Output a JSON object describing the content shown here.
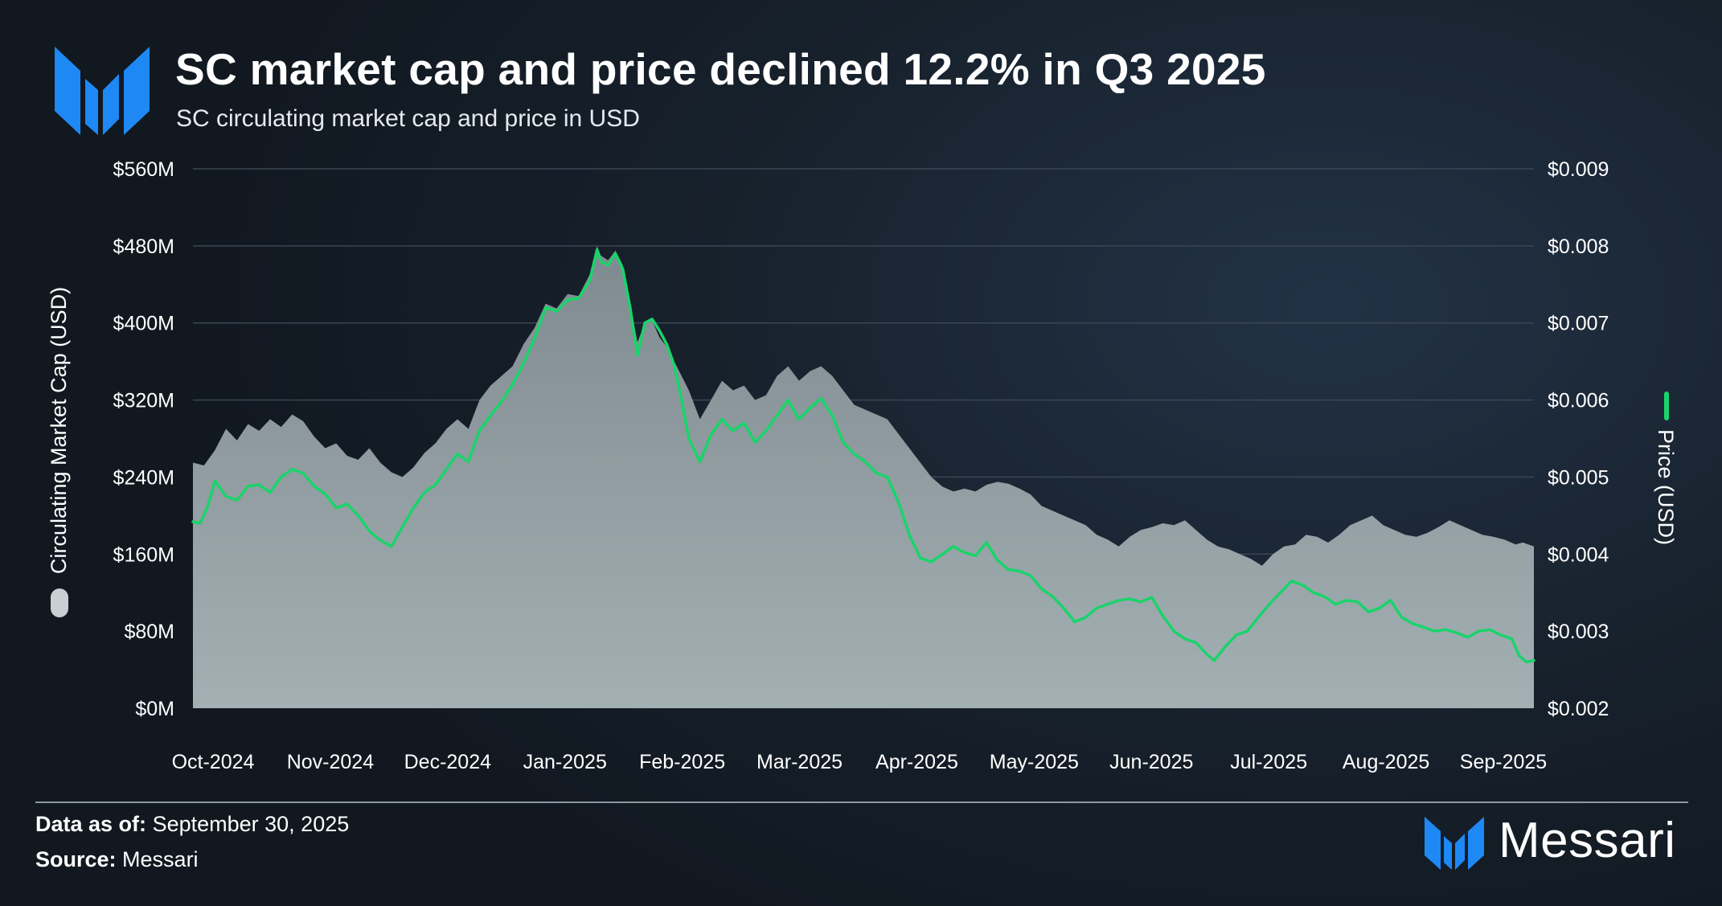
{
  "header": {
    "title": "SC market cap and price declined 12.2% in Q3 2025",
    "subtitle": "SC circulating market cap and price in USD"
  },
  "footer": {
    "data_as_of_label": "Data as of:",
    "data_as_of_value": "September 30, 2025",
    "source_label": "Source:",
    "source_value": "Messari"
  },
  "brand": {
    "name": "Messari",
    "logo_icon": "messari-logo-icon",
    "color": "#1e88f5"
  },
  "colors": {
    "area_fill": "#8b9aa0",
    "price_line": "#19d46a",
    "grid": "#3a4654"
  },
  "chart_data": {
    "type": "area+line",
    "title": "SC market cap and price declined 12.2% in Q3 2025",
    "subtitle": "SC circulating market cap and price in USD",
    "x_tick_labels": [
      "Oct-2024",
      "Nov-2024",
      "Dec-2024",
      "Jan-2025",
      "Feb-2025",
      "Mar-2025",
      "Apr-2025",
      "May-2025",
      "Jun-2025",
      "Jul-2025",
      "Aug-2025",
      "Sep-2025"
    ],
    "y_left": {
      "label": "Circulating Market Cap (USD)",
      "ylim": [
        0,
        560
      ],
      "ticks": [
        0,
        80,
        160,
        240,
        320,
        400,
        480,
        560
      ],
      "tick_labels": [
        "$0M",
        "$80M",
        "$160M",
        "$240M",
        "$320M",
        "$400M",
        "$480M",
        "$560M"
      ]
    },
    "y_right": {
      "label": "Price (USD)",
      "ylim": [
        0.002,
        0.009
      ],
      "ticks": [
        0.002,
        0.003,
        0.004,
        0.005,
        0.006,
        0.007,
        0.008,
        0.009
      ],
      "tick_labels": [
        "$0.002",
        "$0.003",
        "$0.004",
        "$0.005",
        "$0.006",
        "$0.007",
        "$0.008",
        "$0.009"
      ]
    },
    "x_range_days": [
      0,
      365
    ],
    "grid": true,
    "series": [
      {
        "name": "Circulating Market Cap (USD)",
        "axis": "left",
        "kind": "area",
        "unit": "$M",
        "points": [
          [
            0,
            255
          ],
          [
            3,
            252
          ],
          [
            6,
            268
          ],
          [
            9,
            290
          ],
          [
            12,
            278
          ],
          [
            15,
            295
          ],
          [
            18,
            288
          ],
          [
            21,
            300
          ],
          [
            24,
            292
          ],
          [
            27,
            305
          ],
          [
            30,
            298
          ],
          [
            33,
            282
          ],
          [
            36,
            270
          ],
          [
            39,
            275
          ],
          [
            42,
            262
          ],
          [
            45,
            258
          ],
          [
            48,
            270
          ],
          [
            51,
            255
          ],
          [
            54,
            245
          ],
          [
            57,
            240
          ],
          [
            60,
            250
          ],
          [
            63,
            265
          ],
          [
            66,
            275
          ],
          [
            69,
            290
          ],
          [
            72,
            300
          ],
          [
            75,
            290
          ],
          [
            78,
            320
          ],
          [
            81,
            335
          ],
          [
            84,
            345
          ],
          [
            87,
            355
          ],
          [
            90,
            378
          ],
          [
            93,
            395
          ],
          [
            96,
            420
          ],
          [
            99,
            415
          ],
          [
            102,
            430
          ],
          [
            105,
            428
          ],
          [
            108,
            450
          ],
          [
            110,
            480
          ],
          [
            111,
            470
          ],
          [
            113,
            465
          ],
          [
            115,
            475
          ],
          [
            117,
            460
          ],
          [
            119,
            420
          ],
          [
            121,
            380
          ],
          [
            123,
            400
          ],
          [
            125,
            402
          ],
          [
            127,
            385
          ],
          [
            129,
            375
          ],
          [
            131,
            360
          ],
          [
            133,
            345
          ],
          [
            135,
            330
          ],
          [
            138,
            300
          ],
          [
            141,
            320
          ],
          [
            144,
            340
          ],
          [
            147,
            330
          ],
          [
            150,
            335
          ],
          [
            153,
            320
          ],
          [
            156,
            325
          ],
          [
            159,
            345
          ],
          [
            162,
            355
          ],
          [
            165,
            340
          ],
          [
            168,
            350
          ],
          [
            171,
            355
          ],
          [
            174,
            345
          ],
          [
            177,
            330
          ],
          [
            180,
            315
          ],
          [
            183,
            310
          ],
          [
            186,
            305
          ],
          [
            189,
            300
          ],
          [
            192,
            285
          ],
          [
            195,
            270
          ],
          [
            198,
            255
          ],
          [
            201,
            240
          ],
          [
            204,
            230
          ],
          [
            207,
            225
          ],
          [
            210,
            228
          ],
          [
            213,
            225
          ],
          [
            216,
            232
          ],
          [
            219,
            235
          ],
          [
            222,
            233
          ],
          [
            225,
            228
          ],
          [
            228,
            222
          ],
          [
            231,
            210
          ],
          [
            234,
            205
          ],
          [
            237,
            200
          ],
          [
            240,
            195
          ],
          [
            243,
            190
          ],
          [
            246,
            180
          ],
          [
            249,
            175
          ],
          [
            252,
            168
          ],
          [
            255,
            178
          ],
          [
            258,
            185
          ],
          [
            261,
            188
          ],
          [
            264,
            192
          ],
          [
            267,
            190
          ],
          [
            270,
            195
          ],
          [
            273,
            185
          ],
          [
            276,
            175
          ],
          [
            279,
            168
          ],
          [
            282,
            165
          ],
          [
            285,
            160
          ],
          [
            288,
            155
          ],
          [
            291,
            148
          ],
          [
            294,
            160
          ],
          [
            297,
            168
          ],
          [
            300,
            170
          ],
          [
            303,
            180
          ],
          [
            306,
            178
          ],
          [
            309,
            172
          ],
          [
            312,
            180
          ],
          [
            315,
            190
          ],
          [
            318,
            195
          ],
          [
            321,
            200
          ],
          [
            324,
            190
          ],
          [
            327,
            185
          ],
          [
            330,
            180
          ],
          [
            333,
            178
          ],
          [
            336,
            182
          ],
          [
            339,
            188
          ],
          [
            342,
            195
          ],
          [
            345,
            190
          ],
          [
            348,
            185
          ],
          [
            351,
            180
          ],
          [
            354,
            178
          ],
          [
            357,
            175
          ],
          [
            360,
            170
          ],
          [
            362,
            172
          ],
          [
            365,
            168
          ]
        ]
      },
      {
        "name": "Price (USD)",
        "axis": "right",
        "kind": "line",
        "points": [
          [
            0,
            0.00442
          ],
          [
            2,
            0.0044
          ],
          [
            4,
            0.00462
          ],
          [
            6,
            0.00495
          ],
          [
            9,
            0.00475
          ],
          [
            12,
            0.0047
          ],
          [
            15,
            0.00488
          ],
          [
            18,
            0.0049
          ],
          [
            21,
            0.0048
          ],
          [
            24,
            0.005
          ],
          [
            27,
            0.0051
          ],
          [
            30,
            0.00505
          ],
          [
            33,
            0.00488
          ],
          [
            36,
            0.00478
          ],
          [
            39,
            0.0046
          ],
          [
            42,
            0.00465
          ],
          [
            45,
            0.0045
          ],
          [
            48,
            0.0043
          ],
          [
            51,
            0.00418
          ],
          [
            54,
            0.0041
          ],
          [
            57,
            0.00435
          ],
          [
            60,
            0.0046
          ],
          [
            63,
            0.0048
          ],
          [
            66,
            0.0049
          ],
          [
            69,
            0.0051
          ],
          [
            72,
            0.0053
          ],
          [
            75,
            0.0052
          ],
          [
            78,
            0.0056
          ],
          [
            81,
            0.0058
          ],
          [
            84,
            0.00598
          ],
          [
            87,
            0.0062
          ],
          [
            90,
            0.00648
          ],
          [
            93,
            0.0068
          ],
          [
            96,
            0.0072
          ],
          [
            99,
            0.00715
          ],
          [
            102,
            0.0073
          ],
          [
            105,
            0.00732
          ],
          [
            108,
            0.00755
          ],
          [
            110,
            0.00795
          ],
          [
            111,
            0.0078
          ],
          [
            113,
            0.00775
          ],
          [
            115,
            0.0079
          ],
          [
            117,
            0.0077
          ],
          [
            119,
            0.0072
          ],
          [
            121,
            0.00658
          ],
          [
            123,
            0.007
          ],
          [
            125,
            0.00705
          ],
          [
            127,
            0.0069
          ],
          [
            129,
            0.00672
          ],
          [
            131,
            0.00645
          ],
          [
            133,
            0.006
          ],
          [
            135,
            0.0055
          ],
          [
            138,
            0.0052
          ],
          [
            141,
            0.00555
          ],
          [
            144,
            0.00575
          ],
          [
            147,
            0.0056
          ],
          [
            150,
            0.0057
          ],
          [
            153,
            0.00545
          ],
          [
            156,
            0.0056
          ],
          [
            159,
            0.0058
          ],
          [
            162,
            0.006
          ],
          [
            165,
            0.00575
          ],
          [
            168,
            0.0059
          ],
          [
            171,
            0.00602
          ],
          [
            174,
            0.0058
          ],
          [
            177,
            0.00545
          ],
          [
            180,
            0.0053
          ],
          [
            183,
            0.0052
          ],
          [
            186,
            0.00505
          ],
          [
            189,
            0.005
          ],
          [
            192,
            0.00468
          ],
          [
            195,
            0.00425
          ],
          [
            198,
            0.00395
          ],
          [
            201,
            0.0039
          ],
          [
            204,
            0.004
          ],
          [
            207,
            0.0041
          ],
          [
            210,
            0.00402
          ],
          [
            213,
            0.00398
          ],
          [
            216,
            0.00415
          ],
          [
            219,
            0.00392
          ],
          [
            222,
            0.0038
          ],
          [
            225,
            0.00378
          ],
          [
            228,
            0.00372
          ],
          [
            231,
            0.00355
          ],
          [
            234,
            0.00345
          ],
          [
            237,
            0.0033
          ],
          [
            240,
            0.00312
          ],
          [
            243,
            0.00318
          ],
          [
            246,
            0.0033
          ],
          [
            249,
            0.00335
          ],
          [
            252,
            0.0034
          ],
          [
            255,
            0.00342
          ],
          [
            258,
            0.00338
          ],
          [
            261,
            0.00344
          ],
          [
            264,
            0.0032
          ],
          [
            267,
            0.003
          ],
          [
            270,
            0.0029
          ],
          [
            273,
            0.00285
          ],
          [
            276,
            0.0027
          ],
          [
            278,
            0.00262
          ],
          [
            281,
            0.0028
          ],
          [
            284,
            0.00295
          ],
          [
            287,
            0.003
          ],
          [
            290,
            0.00318
          ],
          [
            293,
            0.00335
          ],
          [
            296,
            0.0035
          ],
          [
            299,
            0.00365
          ],
          [
            302,
            0.0036
          ],
          [
            305,
            0.0035
          ],
          [
            308,
            0.00345
          ],
          [
            311,
            0.00335
          ],
          [
            314,
            0.0034
          ],
          [
            317,
            0.00338
          ],
          [
            320,
            0.00325
          ],
          [
            323,
            0.0033
          ],
          [
            326,
            0.0034
          ],
          [
            329,
            0.00318
          ],
          [
            332,
            0.0031
          ],
          [
            335,
            0.00305
          ],
          [
            338,
            0.003
          ],
          [
            341,
            0.00302
          ],
          [
            344,
            0.00298
          ],
          [
            347,
            0.00292
          ],
          [
            350,
            0.003
          ],
          [
            353,
            0.00302
          ],
          [
            356,
            0.00295
          ],
          [
            359,
            0.0029
          ],
          [
            361,
            0.00268
          ],
          [
            363,
            0.0026
          ],
          [
            365,
            0.00262
          ]
        ]
      }
    ],
    "legend": [
      "Circulating Market Cap (USD)",
      "Price (USD)"
    ]
  }
}
